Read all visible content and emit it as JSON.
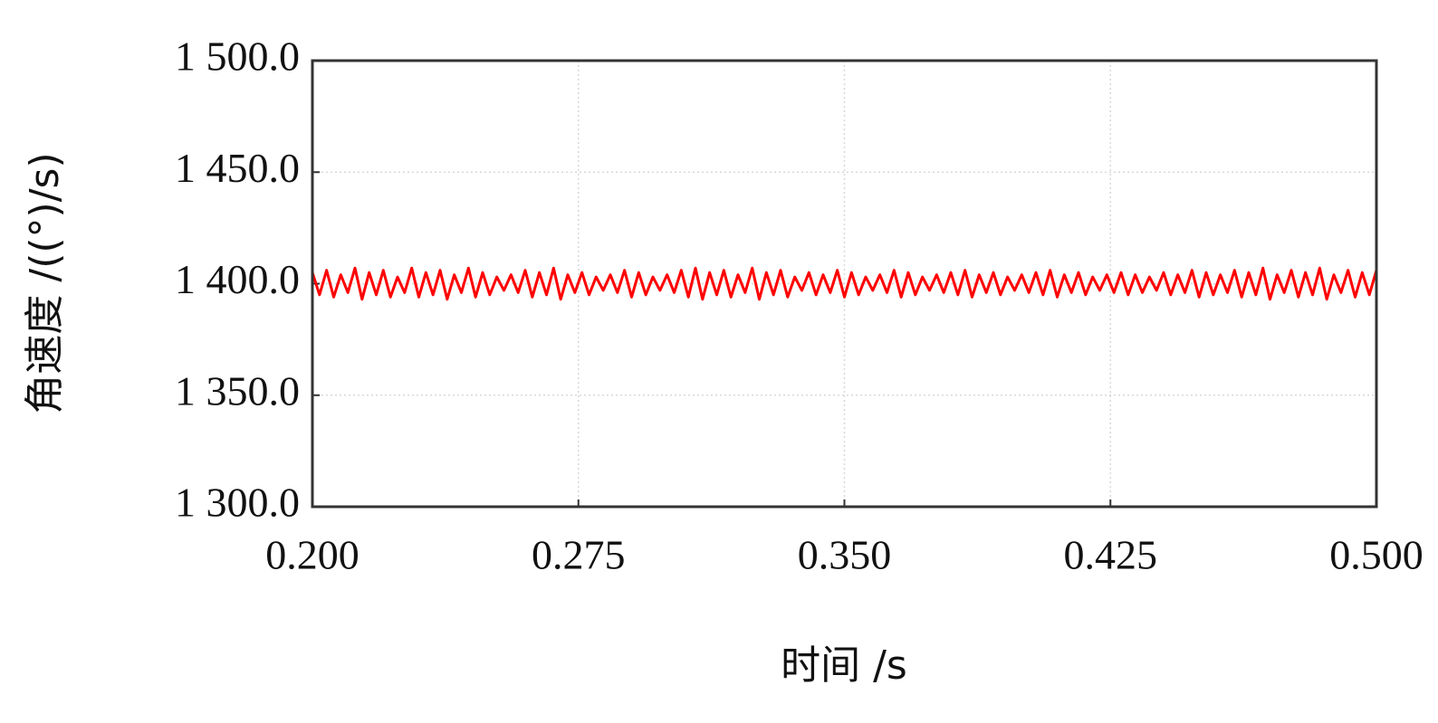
{
  "chart_data": {
    "type": "line",
    "xlabel": "时间 /s",
    "ylabel": "角速度 /((°)/s)",
    "x": [
      0.2,
      0.202,
      0.204,
      0.206,
      0.208,
      0.21,
      0.212,
      0.214,
      0.216,
      0.218,
      0.22,
      0.222,
      0.224,
      0.226,
      0.228,
      0.23,
      0.232,
      0.234,
      0.236,
      0.238,
      0.24,
      0.242,
      0.244,
      0.246,
      0.248,
      0.25,
      0.252,
      0.254,
      0.256,
      0.258,
      0.26,
      0.262,
      0.264,
      0.266,
      0.268,
      0.27,
      0.272,
      0.274,
      0.276,
      0.278,
      0.28,
      0.282,
      0.284,
      0.286,
      0.288,
      0.29,
      0.292,
      0.294,
      0.296,
      0.298,
      0.3,
      0.302,
      0.304,
      0.306,
      0.308,
      0.31,
      0.312,
      0.314,
      0.316,
      0.318,
      0.32,
      0.322,
      0.324,
      0.326,
      0.328,
      0.33,
      0.332,
      0.334,
      0.336,
      0.338,
      0.34,
      0.342,
      0.344,
      0.346,
      0.348,
      0.35,
      0.352,
      0.354,
      0.356,
      0.358,
      0.36,
      0.362,
      0.364,
      0.366,
      0.368,
      0.37,
      0.372,
      0.374,
      0.376,
      0.378,
      0.38,
      0.382,
      0.384,
      0.386,
      0.388,
      0.39,
      0.392,
      0.394,
      0.396,
      0.398,
      0.4,
      0.402,
      0.404,
      0.406,
      0.408,
      0.41,
      0.412,
      0.414,
      0.416,
      0.418,
      0.42,
      0.422,
      0.424,
      0.426,
      0.428,
      0.43,
      0.432,
      0.434,
      0.436,
      0.438,
      0.44,
      0.442,
      0.444,
      0.446,
      0.448,
      0.45,
      0.452,
      0.454,
      0.456,
      0.458,
      0.46,
      0.462,
      0.464,
      0.466,
      0.468,
      0.47,
      0.472,
      0.474,
      0.476,
      0.478,
      0.48,
      0.482,
      0.484,
      0.486,
      0.488,
      0.49,
      0.492,
      0.494,
      0.496,
      0.498,
      0.5
    ],
    "series": [
      {
        "color": "#ff0000",
        "values": [
          1405,
          1395,
          1406,
          1394,
          1404,
          1396,
          1407,
          1393,
          1405,
          1395,
          1406,
          1394,
          1403,
          1396,
          1407,
          1394,
          1405,
          1395,
          1406,
          1393,
          1404,
          1396,
          1407,
          1394,
          1405,
          1395,
          1403,
          1397,
          1404,
          1396,
          1406,
          1394,
          1405,
          1395,
          1407,
          1393,
          1404,
          1396,
          1405,
          1395,
          1403,
          1397,
          1404,
          1396,
          1406,
          1394,
          1405,
          1395,
          1403,
          1397,
          1404,
          1396,
          1406,
          1394,
          1407,
          1393,
          1405,
          1395,
          1406,
          1394,
          1404,
          1396,
          1407,
          1393,
          1405,
          1395,
          1406,
          1394,
          1403,
          1397,
          1405,
          1395,
          1404,
          1396,
          1406,
          1394,
          1405,
          1395,
          1403,
          1397,
          1404,
          1396,
          1406,
          1394,
          1405,
          1395,
          1403,
          1397,
          1404,
          1396,
          1405,
          1395,
          1406,
          1394,
          1404,
          1396,
          1405,
          1395,
          1403,
          1397,
          1404,
          1396,
          1405,
          1395,
          1406,
          1394,
          1404,
          1396,
          1405,
          1395,
          1403,
          1397,
          1404,
          1396,
          1405,
          1395,
          1404,
          1396,
          1403,
          1397,
          1405,
          1395,
          1404,
          1396,
          1406,
          1394,
          1405,
          1395,
          1404,
          1396,
          1406,
          1394,
          1405,
          1395,
          1407,
          1393,
          1404,
          1396,
          1406,
          1394,
          1405,
          1395,
          1407,
          1393,
          1404,
          1396,
          1406,
          1394,
          1405,
          1395,
          1406
        ]
      }
    ],
    "xlim": [
      0.2,
      0.5
    ],
    "xticks": [
      {
        "value": 0.2,
        "label": "0.200"
      },
      {
        "value": 0.275,
        "label": "0.275"
      },
      {
        "value": 0.35,
        "label": "0.350"
      },
      {
        "value": 0.425,
        "label": "0.425"
      },
      {
        "value": 0.5,
        "label": "0.500"
      }
    ],
    "ylim": [
      1300,
      1500
    ],
    "yticks": [
      {
        "value": 1300,
        "label": "1 300.0"
      },
      {
        "value": 1350,
        "label": "1 350.0"
      },
      {
        "value": 1400,
        "label": "1 400.0"
      },
      {
        "value": 1450,
        "label": "1 450.0"
      },
      {
        "value": 1500,
        "label": "1 500.0"
      }
    ],
    "grid": true
  }
}
